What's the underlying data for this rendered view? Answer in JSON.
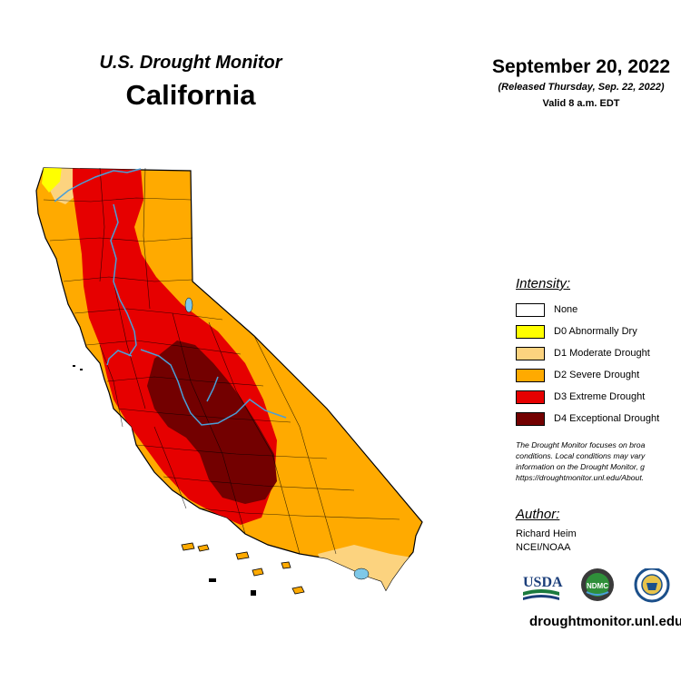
{
  "header": {
    "monitor_title": "U.S. Drought Monitor",
    "state_title": "California",
    "date": "September 20, 2022",
    "released": "(Released Thursday, Sep. 22, 2022)",
    "valid": "Valid 8 a.m. EDT"
  },
  "legend": {
    "title": "Intensity:",
    "items": [
      {
        "label": "None",
        "color": "#ffffff"
      },
      {
        "label": "D0 Abnormally Dry",
        "color": "#ffff00"
      },
      {
        "label": "D1 Moderate Drought",
        "color": "#fcd37f"
      },
      {
        "label": "D2 Severe Drought",
        "color": "#ffaa00"
      },
      {
        "label": "D3 Extreme Drought",
        "color": "#e60000"
      },
      {
        "label": "D4 Exceptional Drought",
        "color": "#730000"
      }
    ]
  },
  "note": [
    "The Drought Monitor focuses on broa",
    "conditions. Local conditions may vary",
    "information on the Drought Monitor, g",
    "https://droughtmonitor.unl.edu/About."
  ],
  "author": {
    "title": "Author:",
    "name": "Richard Heim",
    "org": "NCEI/NOAA"
  },
  "logos": {
    "usda": "USDA",
    "ndmc": "NDMC"
  },
  "website": "droughtmonitor.unl.edu",
  "map_colors": {
    "boundary": "#000000",
    "river": "#4a9fd8",
    "lake": "#7ec8e8"
  }
}
